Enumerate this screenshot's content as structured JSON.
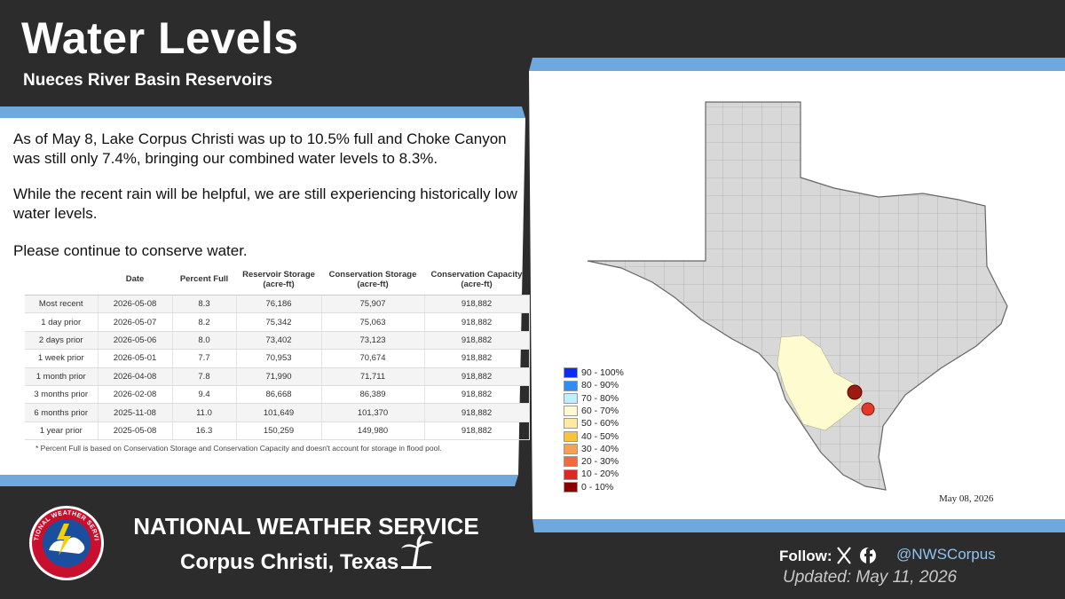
{
  "header": {
    "title": "Water Levels",
    "subtitle": "Nueces River Basin Reservoirs"
  },
  "paragraphs": [
    "As of May 8,  Lake Corpus Christi was up to 10.5% full and Choke Canyon was still only 7.4%, bringing our combined water levels to 8.3%.",
    "While the recent rain will be helpful, we are still experiencing historically low water levels.",
    "Please continue to conserve water."
  ],
  "table": {
    "columns": [
      "Date",
      "Percent Full",
      "Reservoir Storage\n(acre-ft)",
      "Conservation Storage\n(acre-ft)",
      "Conservation Capacity\n(acre-ft)"
    ],
    "rows": [
      [
        "Most recent",
        "2026-05-08",
        "8.3",
        "76,186",
        "75,907",
        "918,882"
      ],
      [
        "1 day prior",
        "2026-05-07",
        "8.2",
        "75,342",
        "75,063",
        "918,882"
      ],
      [
        "2 days prior",
        "2026-05-06",
        "8.0",
        "73,402",
        "73,123",
        "918,882"
      ],
      [
        "1 week prior",
        "2026-05-01",
        "7.7",
        "70,953",
        "70,674",
        "918,882"
      ],
      [
        "1 month prior",
        "2026-04-08",
        "7.8",
        "71,990",
        "71,711",
        "918,882"
      ],
      [
        "3 months prior",
        "2026-02-08",
        "9.4",
        "86,668",
        "86,389",
        "918,882"
      ],
      [
        "6 months prior",
        "2025-11-08",
        "11.0",
        "101,649",
        "101,370",
        "918,882"
      ],
      [
        "1 year prior",
        "2025-05-08",
        "16.3",
        "150,259",
        "149,980",
        "918,882"
      ]
    ],
    "note": "*  Percent Full is based on Conservation Storage and Conservation Capacity and doesn't account for storage in flood pool."
  },
  "map": {
    "date": "May 08, 2026",
    "legend": [
      {
        "label": "90 - 100%",
        "color": "#0a2cf5"
      },
      {
        "label": "80 - 90%",
        "color": "#2f8cf0"
      },
      {
        "label": "70 - 80%",
        "color": "#bfefff"
      },
      {
        "label": "60 - 70%",
        "color": "#fffbd0"
      },
      {
        "label": "50 - 60%",
        "color": "#fde9a0"
      },
      {
        "label": "40 - 50%",
        "color": "#f8c23a"
      },
      {
        "label": "30 - 40%",
        "color": "#f7a050"
      },
      {
        "label": "20 - 30%",
        "color": "#f26a3d"
      },
      {
        "label": "10 - 20%",
        "color": "#e02820"
      },
      {
        "label": "0 - 10%",
        "color": "#8b0000"
      }
    ]
  },
  "footer": {
    "org": "NATIONAL WEATHER SERVICE",
    "office": "Corpus Christi, Texas",
    "follow": "Follow:",
    "handle": "@NWSCorpus",
    "updated": "Updated: May 11, 2026"
  }
}
